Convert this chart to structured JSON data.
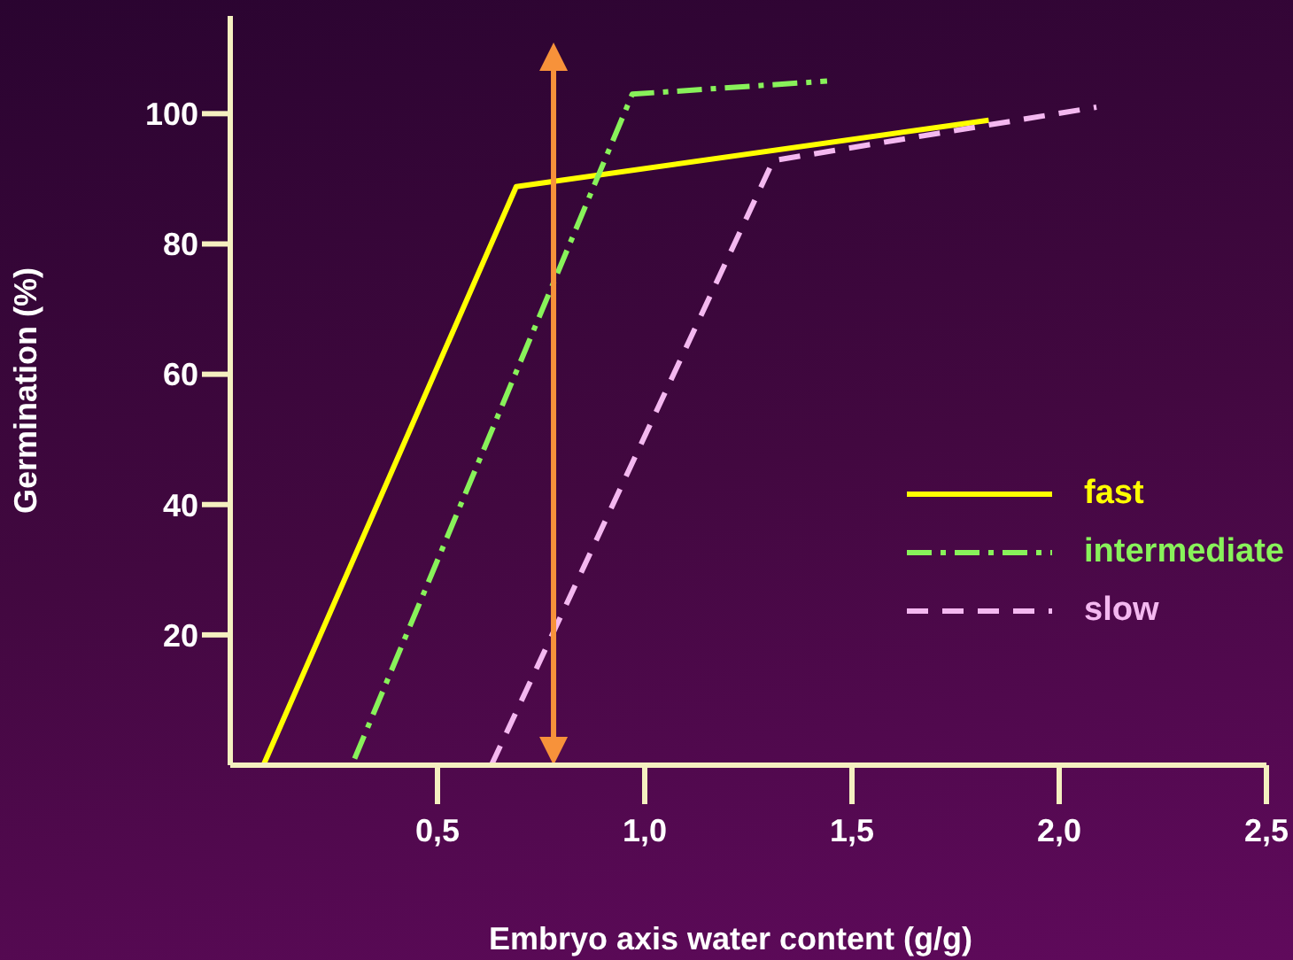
{
  "chart_data": {
    "type": "line",
    "xlabel": "Embryo axis water content (g/g)",
    "ylabel": "Germination (%)",
    "xlim": [
      0,
      2.5
    ],
    "xticks": [
      {
        "value": 0.5,
        "label": "0,5"
      },
      {
        "value": 1.0,
        "label": "1,0"
      },
      {
        "value": 1.5,
        "label": "1,5"
      },
      {
        "value": 2.0,
        "label": "2,0"
      },
      {
        "value": 2.5,
        "label": "2,5"
      }
    ],
    "ylim": [
      0,
      115
    ],
    "yticks": [
      20,
      40,
      60,
      80,
      100
    ],
    "series": [
      {
        "name": "fast",
        "color": "#ffff00",
        "x": [
          0.08,
          0.69,
          1.83
        ],
        "values": [
          0,
          88.8,
          99
        ],
        "line_style": "solid"
      },
      {
        "name": "intermediate",
        "color": "#88f25a",
        "x": [
          0.3,
          0.97,
          1.44
        ],
        "values": [
          1,
          103,
          105
        ],
        "line_style": "dashdot"
      },
      {
        "name": "slow",
        "color": "#f4b8f0",
        "x": [
          0.63,
          1.31,
          2.09
        ],
        "values": [
          0,
          92.8,
          101
        ],
        "line_style": "dashed"
      }
    ],
    "ref_lines": [
      {
        "axis": "x",
        "value": 0.78,
        "color": "#f7923a"
      }
    ],
    "legend": "right",
    "marker": "none",
    "grid": false
  }
}
